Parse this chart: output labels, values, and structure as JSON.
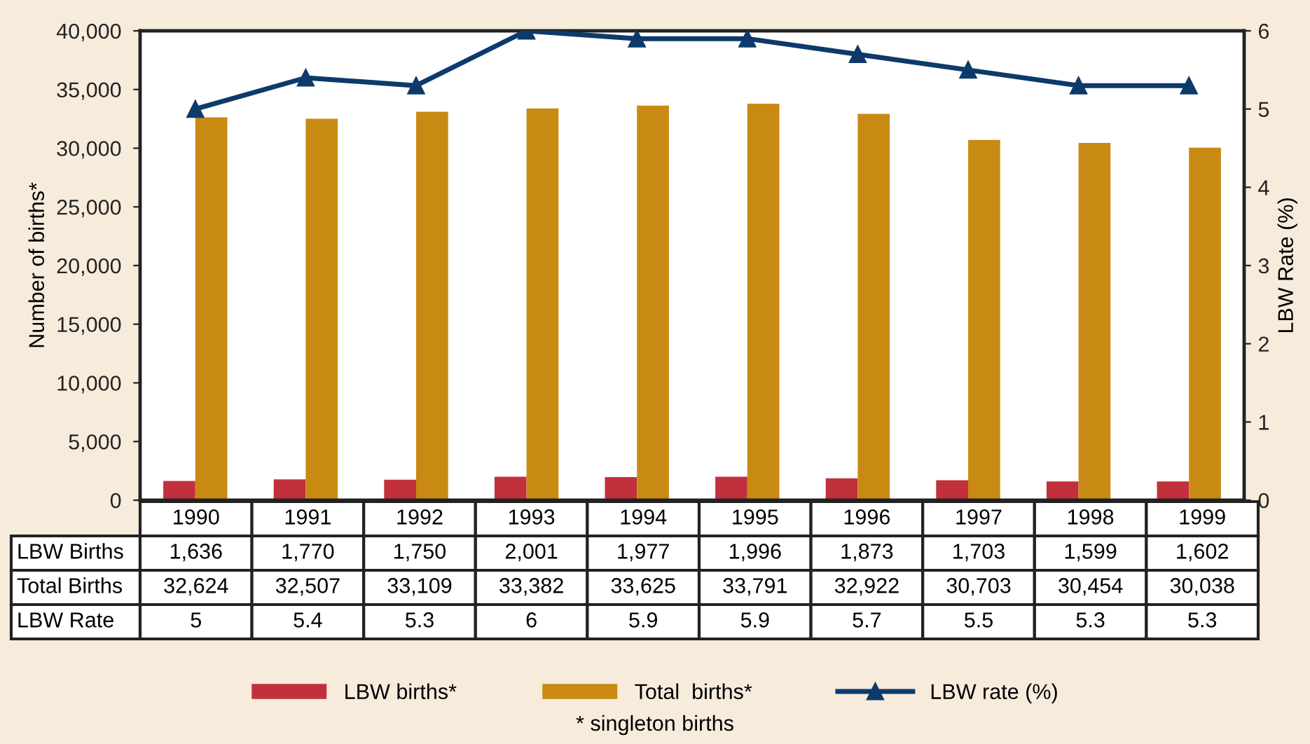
{
  "chart_data": {
    "type": "bar",
    "ylabel": "Number of births*",
    "y2label": "LBW Rate (%)",
    "categories": [
      "1990",
      "1991",
      "1992",
      "1993",
      "1994",
      "1995",
      "1996",
      "1997",
      "1998",
      "1999"
    ],
    "series": [
      {
        "name": "LBW births*",
        "color": "#c2303c",
        "values": [
          1636,
          1770,
          1750,
          2001,
          1977,
          1996,
          1873,
          1703,
          1599,
          1602
        ],
        "value_labels": [
          "1,636",
          "1,770",
          "1,750",
          "2,001",
          "1,977",
          "1,996",
          "1,873",
          "1,703",
          "1,599",
          "1,602"
        ]
      },
      {
        "name": "Total  births*",
        "color": "#c98a14",
        "values": [
          32624,
          32507,
          33109,
          33382,
          33625,
          33791,
          32922,
          30703,
          30454,
          30038
        ],
        "value_labels": [
          "32,624",
          "32,507",
          "33,109",
          "33,382",
          "33,625",
          "33,791",
          "32,922",
          "30,703",
          "30,454",
          "30,038"
        ]
      },
      {
        "name": "LBW rate (%)",
        "type": "line",
        "axis": "y2",
        "color": "#0d3a6b",
        "marker": "triangle",
        "values": [
          5,
          5.4,
          5.3,
          6,
          5.9,
          5.9,
          5.7,
          5.5,
          5.3,
          5.3
        ],
        "value_labels": [
          "5",
          "5.4",
          "5.3",
          "6",
          "5.9",
          "5.9",
          "5.7",
          "5.5",
          "5.3",
          "5.3"
        ]
      }
    ],
    "ylim": [
      0,
      40000
    ],
    "yticks": [
      {
        "value": 0,
        "label": "0"
      },
      {
        "value": 5000,
        "label": "5,000"
      },
      {
        "value": 10000,
        "label": "10,000"
      },
      {
        "value": 15000,
        "label": "15,000"
      },
      {
        "value": 20000,
        "label": "20,000"
      },
      {
        "value": 25000,
        "label": "25,000"
      },
      {
        "value": 30000,
        "label": "30,000"
      },
      {
        "value": 35000,
        "label": "35,000"
      },
      {
        "value": 40000,
        "label": "40,000"
      }
    ],
    "y2lim": [
      0,
      6
    ],
    "y2ticks": [
      0,
      1,
      2,
      3,
      4,
      5,
      6
    ],
    "annotations": [
      "LBW Births",
      "Total Births",
      "LBW Rate",
      "* singleton births"
    ],
    "legend": "bottom",
    "grid": false
  }
}
